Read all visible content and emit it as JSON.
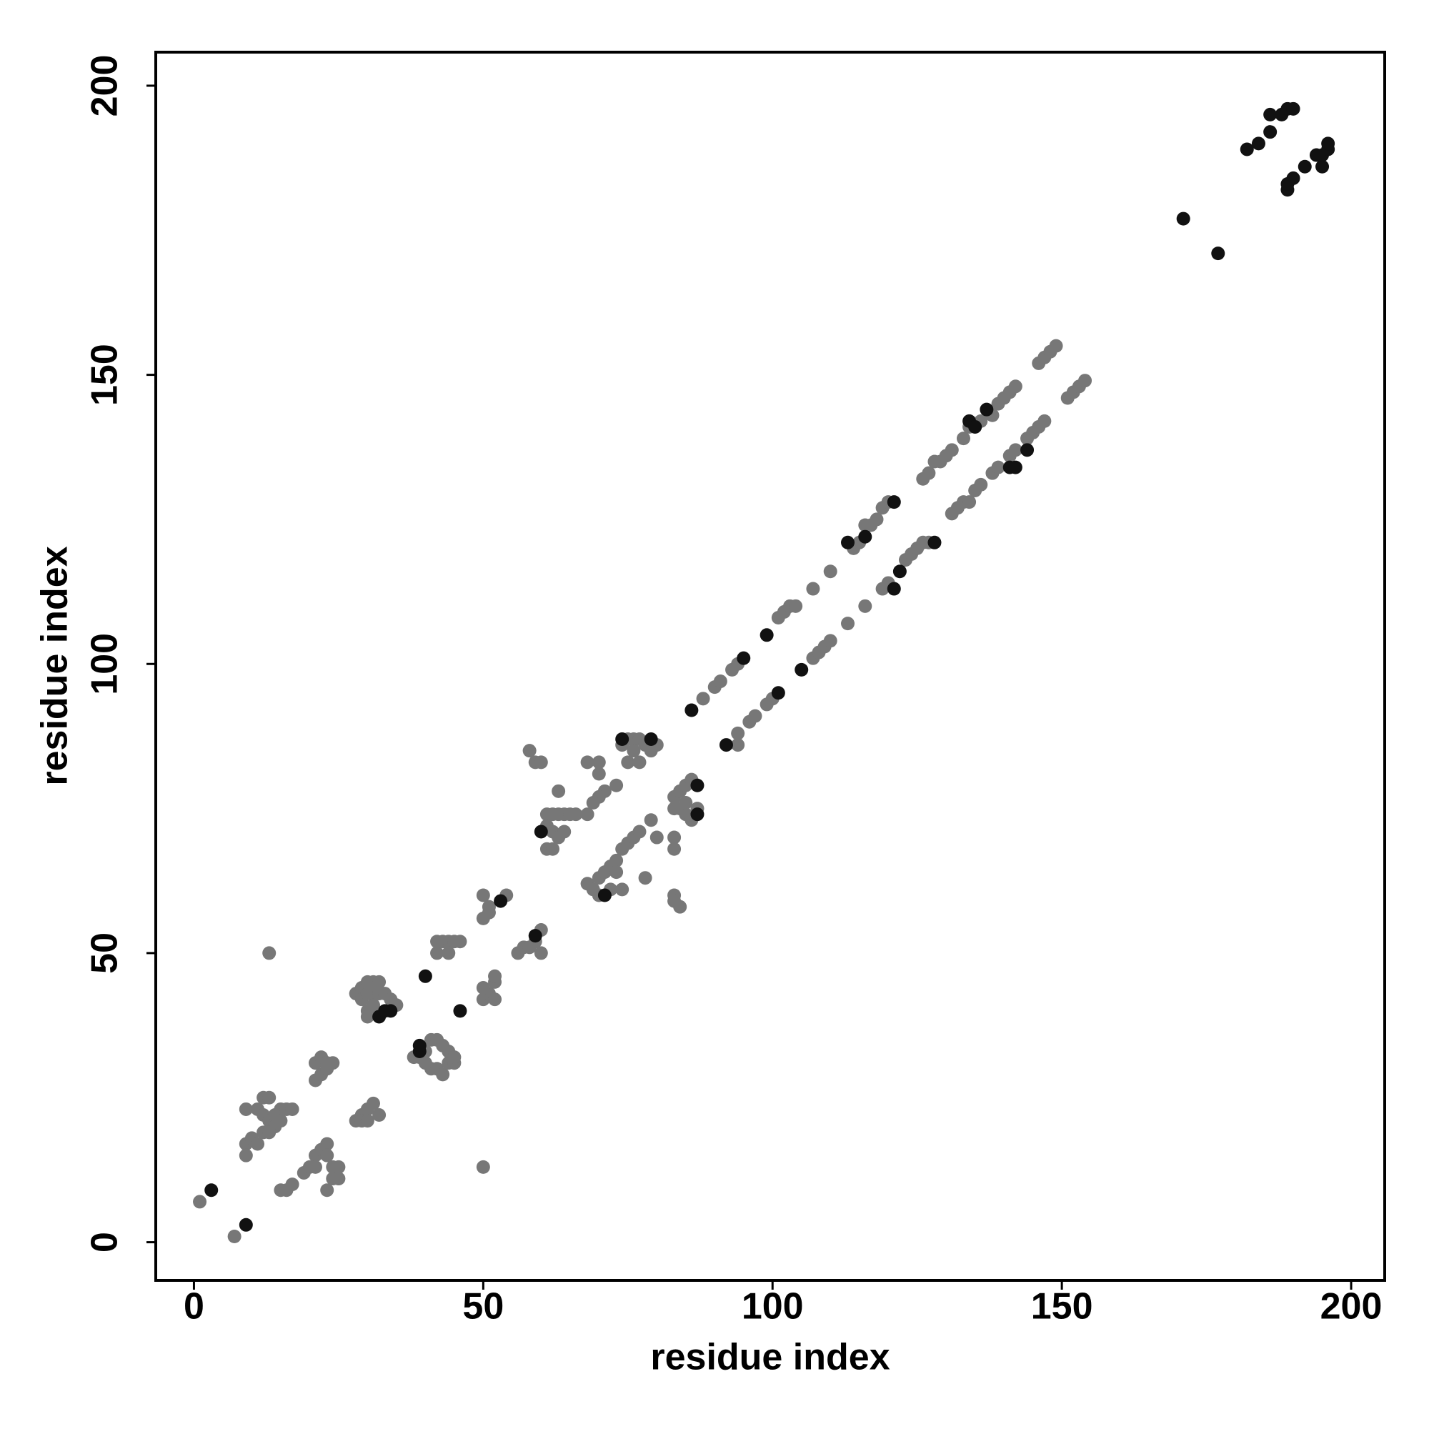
{
  "chart_data": {
    "type": "scatter",
    "xlabel": "residue index",
    "ylabel": "residue index",
    "xlim": [
      -6.6,
      205.8
    ],
    "ylim": [
      -6.6,
      205.8
    ],
    "xticks": [
      0,
      50,
      100,
      150,
      200
    ],
    "yticks": [
      0,
      50,
      100,
      150,
      200
    ],
    "series": [
      {
        "color": "#777777",
        "x": [
          88,
          90,
          91,
          93,
          94,
          101,
          102,
          103,
          104,
          107,
          110,
          114,
          115,
          116,
          117,
          118,
          119,
          120,
          126,
          127,
          128,
          129,
          130,
          131,
          133,
          134,
          136,
          138,
          139,
          140,
          141,
          142,
          146,
          147,
          148,
          149,
          94,
          94,
          96,
          97,
          99,
          100,
          107,
          108,
          109,
          110,
          113,
          116,
          119,
          120,
          123,
          124,
          125,
          126,
          127,
          131,
          132,
          133,
          134,
          135,
          136,
          138,
          139,
          141,
          142,
          144,
          145,
          146,
          147,
          151,
          152,
          153,
          154,
          1,
          7,
          9,
          10,
          11,
          9,
          9,
          11,
          12,
          13,
          12,
          13,
          14,
          14,
          15,
          16,
          17,
          15,
          12,
          13,
          15,
          16,
          17,
          19,
          20,
          21,
          22,
          23,
          23,
          24,
          25,
          24,
          25,
          23,
          21,
          21,
          22,
          23,
          24,
          21,
          22,
          23,
          28,
          29,
          30,
          31,
          32,
          29,
          30,
          28,
          29,
          30,
          31,
          32,
          29,
          30,
          31,
          32,
          33,
          34,
          35,
          30,
          31,
          30,
          38,
          39,
          40,
          41,
          42,
          41,
          42,
          43,
          44,
          45,
          44,
          45,
          43,
          40,
          13,
          42,
          43,
          44,
          45,
          46,
          42,
          44,
          50,
          51,
          52,
          52,
          52,
          50,
          50,
          50,
          51,
          51,
          54,
          56,
          57,
          58,
          59,
          60,
          60,
          50,
          58,
          59,
          60,
          61,
          62,
          63,
          64,
          65,
          66,
          61,
          62,
          63,
          64,
          61,
          62,
          63,
          68,
          70,
          70,
          71,
          70,
          68,
          69,
          73,
          68,
          69,
          70,
          71,
          72,
          73,
          70,
          72,
          74,
          73,
          74,
          75,
          76,
          77,
          79,
          80,
          83,
          83,
          78,
          83,
          84,
          83,
          74,
          75,
          76,
          77,
          78,
          79,
          80,
          75,
          77,
          76,
          83,
          84,
          85,
          86,
          84,
          85,
          86,
          87,
          83,
          85
        ],
        "values": [
          94,
          96,
          97,
          99,
          100,
          108,
          109,
          110,
          110,
          113,
          116,
          120,
          121,
          124,
          124,
          125,
          127,
          128,
          132,
          133,
          135,
          135,
          136,
          137,
          139,
          141,
          142,
          143,
          145,
          146,
          147,
          148,
          152,
          153,
          154,
          155,
          86,
          88,
          90,
          91,
          93,
          94,
          101,
          102,
          103,
          104,
          107,
          110,
          113,
          114,
          118,
          119,
          120,
          121,
          121,
          126,
          127,
          128,
          128,
          130,
          131,
          133,
          134,
          136,
          137,
          139,
          140,
          141,
          142,
          146,
          147,
          148,
          149,
          7,
          1,
          17,
          18,
          17,
          15,
          23,
          23,
          25,
          25,
          22,
          21,
          22,
          20,
          23,
          23,
          23,
          21,
          19,
          19,
          9,
          9,
          10,
          12,
          13,
          15,
          16,
          17,
          15,
          13,
          13,
          11,
          11,
          9,
          13,
          31,
          32,
          31,
          31,
          28,
          29,
          30,
          21,
          22,
          23,
          24,
          22,
          21,
          21,
          43,
          44,
          45,
          45,
          45,
          42,
          43,
          43,
          43,
          43,
          42,
          41,
          40,
          41,
          39,
          32,
          32,
          31,
          35,
          35,
          30,
          30,
          29,
          31,
          31,
          33,
          32,
          34,
          33,
          50,
          50,
          52,
          52,
          52,
          52,
          52,
          50,
          42,
          43,
          45,
          42,
          46,
          44,
          60,
          56,
          57,
          58,
          60,
          50,
          51,
          51,
          52,
          54,
          50,
          13,
          85,
          83,
          83,
          74,
          74,
          74,
          74,
          74,
          74,
          72,
          71,
          70,
          71,
          68,
          68,
          78,
          83,
          83,
          81,
          78,
          77,
          74,
          76,
          79,
          62,
          61,
          63,
          64,
          65,
          66,
          60,
          61,
          61,
          64,
          68,
          69,
          70,
          71,
          73,
          70,
          70,
          68,
          63,
          60,
          58,
          59,
          86,
          87,
          87,
          87,
          86,
          85,
          86,
          83,
          83,
          85,
          77,
          78,
          79,
          80,
          75,
          74,
          73,
          75,
          75,
          76
        ]
      },
      {
        "color": "#111111",
        "x": [
          3,
          9,
          40,
          46,
          53,
          59,
          60,
          71,
          74,
          79,
          86,
          87,
          87,
          92,
          95,
          99,
          101,
          105,
          113,
          116,
          121,
          121,
          122,
          128,
          134,
          135,
          137,
          141,
          142,
          144,
          171,
          177,
          182,
          184,
          186,
          186,
          188,
          189,
          190,
          189,
          190,
          192,
          195,
          195,
          196,
          196,
          189,
          194,
          32,
          33,
          34,
          39,
          39
        ],
        "values": [
          9,
          3,
          46,
          40,
          59,
          53,
          71,
          60,
          87,
          87,
          92,
          79,
          74,
          86,
          101,
          105,
          95,
          99,
          121,
          122,
          128,
          113,
          116,
          121,
          142,
          141,
          144,
          134,
          134,
          137,
          177,
          171,
          189,
          190,
          192,
          195,
          195,
          196,
          196,
          182,
          184,
          186,
          186,
          188,
          189,
          190,
          183,
          188,
          39,
          40,
          40,
          33,
          34
        ]
      }
    ]
  }
}
